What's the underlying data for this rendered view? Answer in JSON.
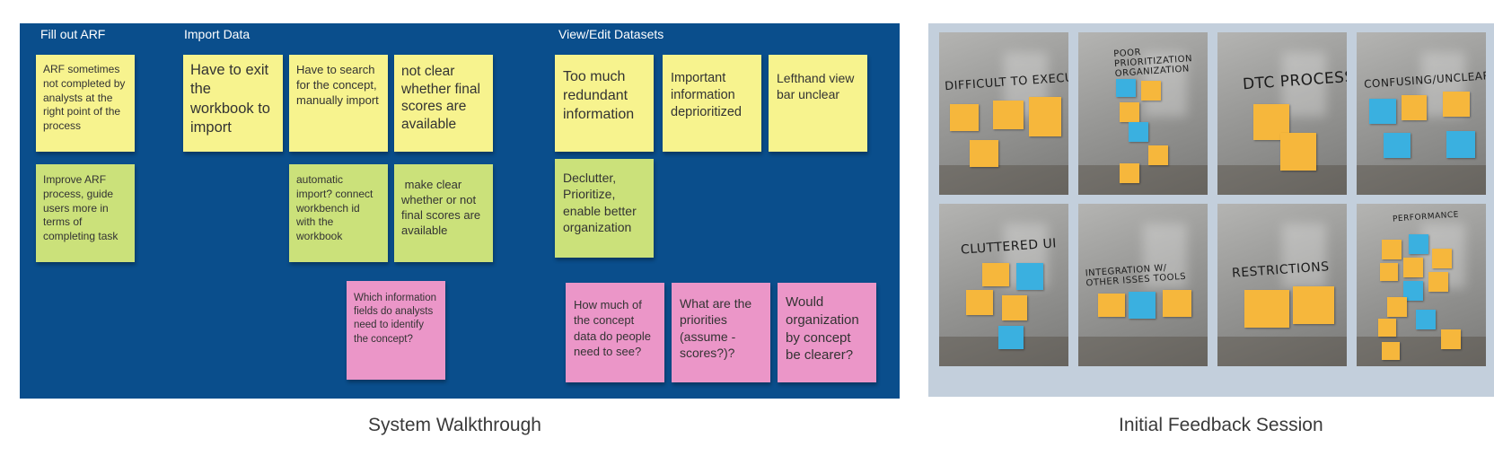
{
  "walkthrough": {
    "caption": "System Walkthrough",
    "columns": [
      {
        "title": "Fill out ARF"
      },
      {
        "title": "Import Data"
      },
      {
        "title": "View/Edit Datasets"
      }
    ],
    "notes": {
      "arf_problem": "ARF sometimes not completed by analysts at the right point of the process",
      "arf_fix": "Improve ARF process, guide users more in terms of completing task",
      "exit_workbook": "Have to exit the workbook to import",
      "search_concept": "Have to search for the concept, manually import",
      "not_clear": "not clear whether final scores are available",
      "auto_import": "automatic import? connect workbench id with the workbook",
      "make_clear": " make clear whether or not final scores are available",
      "which_fields": "Which information fields do analysts need to identify the concept?",
      "redundant": "Too much redundant information",
      "deprioritized": "Important information deprioritized",
      "lefthand": "Lefthand view bar unclear",
      "declutter": "Declutter, Prioritize, enable better organization",
      "how_much": "How much of the concept data do people need to see?",
      "priorities": "What are the priorities (assume - scores?)?",
      "organization": "Would organization by concept be clearer?"
    },
    "colors": {
      "board": "#0a4e8c",
      "yellow": "#f7f38e",
      "green": "#cbe17a",
      "pink": "#eb96c8"
    }
  },
  "feedback": {
    "caption": "Initial Feedback Session",
    "photos": [
      {
        "label": "DIFFICULT TO EXECUTE TASKS"
      },
      {
        "label": "POOR PRIORITIZATION ORGANIZATION"
      },
      {
        "label": "DTC PROCESS"
      },
      {
        "label": "CONFUSING/UNCLEAR"
      },
      {
        "label": "CLUTTERED UI"
      },
      {
        "label": "INTEGRATION W/ OTHER ISSES TOOLS"
      },
      {
        "label": "RESTRICTIONS"
      },
      {
        "label": "PERFORMANCE"
      }
    ]
  }
}
